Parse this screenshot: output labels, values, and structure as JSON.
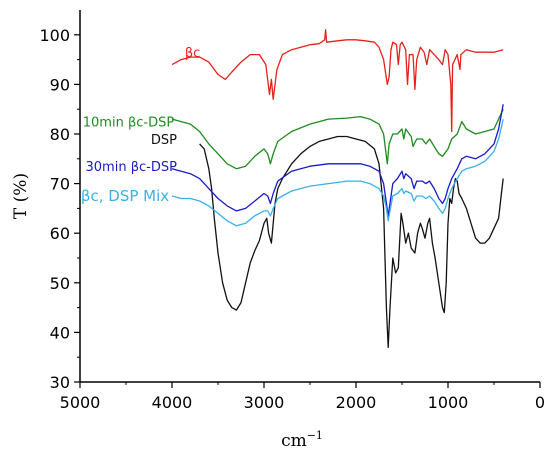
{
  "chart_data": {
    "type": "line",
    "title": "",
    "xlabel": "cm",
    "xlabel_superscript": "−1",
    "ylabel": "T  (%)",
    "xlim": [
      5000,
      0
    ],
    "ylim": [
      30,
      105
    ],
    "x_reversed": true,
    "grid": false,
    "x_ticks": [
      5000,
      4000,
      3000,
      2000,
      1000,
      0
    ],
    "y_ticks": [
      30,
      40,
      50,
      60,
      70,
      80,
      90,
      100
    ],
    "series": [
      {
        "name": "βc",
        "color": "#e8201a",
        "points": [
          [
            4000,
            94
          ],
          [
            3900,
            95
          ],
          [
            3800,
            95.5
          ],
          [
            3700,
            95.5
          ],
          [
            3600,
            94.5
          ],
          [
            3500,
            92
          ],
          [
            3420,
            91
          ],
          [
            3350,
            92.5
          ],
          [
            3250,
            94.5
          ],
          [
            3150,
            96
          ],
          [
            3050,
            96
          ],
          [
            2980,
            94
          ],
          [
            2940,
            88
          ],
          [
            2920,
            91
          ],
          [
            2900,
            87
          ],
          [
            2860,
            93
          ],
          [
            2800,
            96
          ],
          [
            2700,
            97
          ],
          [
            2600,
            97.5
          ],
          [
            2500,
            98
          ],
          [
            2400,
            98.2
          ],
          [
            2340,
            99
          ],
          [
            2330,
            101
          ],
          [
            2320,
            98.5
          ],
          [
            2200,
            98.8
          ],
          [
            2100,
            99
          ],
          [
            2000,
            99
          ],
          [
            1900,
            98.8
          ],
          [
            1800,
            98.5
          ],
          [
            1750,
            97.5
          ],
          [
            1700,
            95
          ],
          [
            1660,
            90
          ],
          [
            1640,
            91.5
          ],
          [
            1620,
            97
          ],
          [
            1600,
            98.5
          ],
          [
            1560,
            98
          ],
          [
            1540,
            94
          ],
          [
            1520,
            98
          ],
          [
            1500,
            98.5
          ],
          [
            1460,
            97
          ],
          [
            1440,
            90
          ],
          [
            1420,
            96
          ],
          [
            1380,
            96
          ],
          [
            1360,
            89
          ],
          [
            1340,
            95
          ],
          [
            1300,
            97.5
          ],
          [
            1260,
            96.5
          ],
          [
            1230,
            94
          ],
          [
            1200,
            97
          ],
          [
            1150,
            96
          ],
          [
            1100,
            95
          ],
          [
            1060,
            94
          ],
          [
            1030,
            97
          ],
          [
            1000,
            96
          ],
          [
            970,
            90
          ],
          [
            960,
            80.5
          ],
          [
            950,
            94
          ],
          [
            900,
            96
          ],
          [
            870,
            93
          ],
          [
            860,
            96
          ],
          [
            800,
            97
          ],
          [
            700,
            96.5
          ],
          [
            600,
            96.5
          ],
          [
            500,
            96.5
          ],
          [
            400,
            97
          ]
        ]
      },
      {
        "name": "10min βc-DSP",
        "color": "#1e8c1e",
        "points": [
          [
            4000,
            83
          ],
          [
            3900,
            82.5
          ],
          [
            3800,
            82
          ],
          [
            3700,
            80.5
          ],
          [
            3600,
            78
          ],
          [
            3500,
            76
          ],
          [
            3400,
            74
          ],
          [
            3300,
            73
          ],
          [
            3200,
            73.5
          ],
          [
            3100,
            75.5
          ],
          [
            3000,
            77
          ],
          [
            2960,
            76
          ],
          [
            2930,
            74
          ],
          [
            2900,
            76
          ],
          [
            2850,
            78.5
          ],
          [
            2700,
            80.5
          ],
          [
            2500,
            82
          ],
          [
            2300,
            83
          ],
          [
            2100,
            83.2
          ],
          [
            1950,
            83.5
          ],
          [
            1850,
            83
          ],
          [
            1750,
            82
          ],
          [
            1700,
            80
          ],
          [
            1660,
            74
          ],
          [
            1640,
            78
          ],
          [
            1600,
            80
          ],
          [
            1550,
            80
          ],
          [
            1500,
            81
          ],
          [
            1480,
            79
          ],
          [
            1460,
            81
          ],
          [
            1400,
            79.5
          ],
          [
            1380,
            77.5
          ],
          [
            1340,
            79
          ],
          [
            1280,
            79
          ],
          [
            1240,
            78
          ],
          [
            1200,
            79
          ],
          [
            1100,
            76
          ],
          [
            1060,
            75.5
          ],
          [
            1000,
            77
          ],
          [
            960,
            79
          ],
          [
            900,
            80
          ],
          [
            850,
            82.5
          ],
          [
            800,
            81
          ],
          [
            700,
            80
          ],
          [
            600,
            80.5
          ],
          [
            500,
            81
          ],
          [
            450,
            83
          ],
          [
            400,
            85
          ]
        ]
      },
      {
        "name": "DSP",
        "color": "#111111",
        "points": [
          [
            3700,
            78
          ],
          [
            3650,
            77
          ],
          [
            3600,
            73
          ],
          [
            3570,
            69
          ],
          [
            3540,
            63
          ],
          [
            3500,
            56
          ],
          [
            3450,
            50
          ],
          [
            3400,
            46.5
          ],
          [
            3350,
            45
          ],
          [
            3300,
            44.5
          ],
          [
            3250,
            46
          ],
          [
            3200,
            50
          ],
          [
            3150,
            54
          ],
          [
            3100,
            56.5
          ],
          [
            3050,
            58.5
          ],
          [
            3000,
            62
          ],
          [
            2970,
            63
          ],
          [
            2950,
            60
          ],
          [
            2920,
            58
          ],
          [
            2900,
            62
          ],
          [
            2880,
            66
          ],
          [
            2850,
            69
          ],
          [
            2800,
            71
          ],
          [
            2700,
            74
          ],
          [
            2600,
            76
          ],
          [
            2500,
            77.5
          ],
          [
            2400,
            78.5
          ],
          [
            2300,
            79
          ],
          [
            2200,
            79.5
          ],
          [
            2100,
            79.5
          ],
          [
            2000,
            79
          ],
          [
            1900,
            78.5
          ],
          [
            1800,
            77
          ],
          [
            1750,
            74
          ],
          [
            1700,
            65
          ],
          [
            1670,
            45
          ],
          [
            1650,
            37
          ],
          [
            1630,
            45
          ],
          [
            1600,
            55
          ],
          [
            1570,
            52
          ],
          [
            1540,
            53
          ],
          [
            1510,
            64
          ],
          [
            1490,
            62
          ],
          [
            1460,
            58
          ],
          [
            1430,
            60
          ],
          [
            1400,
            57
          ],
          [
            1360,
            56
          ],
          [
            1330,
            60
          ],
          [
            1300,
            62
          ],
          [
            1280,
            61
          ],
          [
            1250,
            59
          ],
          [
            1220,
            62
          ],
          [
            1200,
            63
          ],
          [
            1170,
            58
          ],
          [
            1140,
            55
          ],
          [
            1100,
            50
          ],
          [
            1060,
            45
          ],
          [
            1040,
            44
          ],
          [
            1020,
            50
          ],
          [
            1000,
            62
          ],
          [
            980,
            67
          ],
          [
            960,
            66
          ],
          [
            940,
            69
          ],
          [
            920,
            71
          ],
          [
            900,
            70.5
          ],
          [
            880,
            68
          ],
          [
            850,
            67
          ],
          [
            800,
            65
          ],
          [
            750,
            62
          ],
          [
            700,
            59
          ],
          [
            650,
            58
          ],
          [
            600,
            58
          ],
          [
            550,
            59
          ],
          [
            500,
            61
          ],
          [
            450,
            63
          ],
          [
            420,
            68
          ],
          [
            400,
            71
          ]
        ]
      },
      {
        "name": "30min βc-DSP",
        "color": "#1a1acc",
        "points": [
          [
            4000,
            73
          ],
          [
            3900,
            72.5
          ],
          [
            3800,
            72
          ],
          [
            3700,
            71
          ],
          [
            3600,
            69
          ],
          [
            3500,
            67
          ],
          [
            3400,
            65.5
          ],
          [
            3300,
            64.5
          ],
          [
            3200,
            65
          ],
          [
            3100,
            66.5
          ],
          [
            3000,
            68
          ],
          [
            2960,
            67.5
          ],
          [
            2930,
            66
          ],
          [
            2900,
            68
          ],
          [
            2850,
            70.5
          ],
          [
            2700,
            72.5
          ],
          [
            2500,
            73.5
          ],
          [
            2300,
            74
          ],
          [
            2100,
            74
          ],
          [
            1950,
            74
          ],
          [
            1850,
            73.5
          ],
          [
            1750,
            72.5
          ],
          [
            1700,
            70
          ],
          [
            1670,
            66
          ],
          [
            1650,
            63.5
          ],
          [
            1630,
            66
          ],
          [
            1600,
            70
          ],
          [
            1550,
            71
          ],
          [
            1500,
            72.5
          ],
          [
            1480,
            71
          ],
          [
            1460,
            72
          ],
          [
            1400,
            71
          ],
          [
            1370,
            69
          ],
          [
            1340,
            70.5
          ],
          [
            1280,
            70.5
          ],
          [
            1240,
            70
          ],
          [
            1200,
            70.5
          ],
          [
            1150,
            69
          ],
          [
            1100,
            67
          ],
          [
            1060,
            66
          ],
          [
            1030,
            67
          ],
          [
            1000,
            69
          ],
          [
            960,
            71
          ],
          [
            900,
            73
          ],
          [
            850,
            75
          ],
          [
            800,
            75.5
          ],
          [
            700,
            75
          ],
          [
            600,
            76
          ],
          [
            500,
            78
          ],
          [
            450,
            81
          ],
          [
            400,
            86
          ]
        ]
      },
      {
        "name": "βc, DSP Mix",
        "color": "#39b0ec",
        "points": [
          [
            4000,
            67.5
          ],
          [
            3900,
            67
          ],
          [
            3800,
            67
          ],
          [
            3700,
            66.5
          ],
          [
            3600,
            65.5
          ],
          [
            3500,
            64
          ],
          [
            3400,
            62.5
          ],
          [
            3300,
            61.5
          ],
          [
            3200,
            62
          ],
          [
            3100,
            63.5
          ],
          [
            3000,
            64.5
          ],
          [
            2960,
            64.5
          ],
          [
            2930,
            63.5
          ],
          [
            2900,
            65
          ],
          [
            2850,
            67
          ],
          [
            2700,
            68.5
          ],
          [
            2500,
            69.5
          ],
          [
            2300,
            70
          ],
          [
            2100,
            70.5
          ],
          [
            1950,
            70.5
          ],
          [
            1850,
            70
          ],
          [
            1750,
            69
          ],
          [
            1700,
            67.5
          ],
          [
            1670,
            65
          ],
          [
            1650,
            62.5
          ],
          [
            1630,
            64.5
          ],
          [
            1600,
            67.5
          ],
          [
            1550,
            68
          ],
          [
            1500,
            69
          ],
          [
            1480,
            68
          ],
          [
            1460,
            68.5
          ],
          [
            1400,
            68
          ],
          [
            1370,
            66.5
          ],
          [
            1340,
            67.5
          ],
          [
            1280,
            67.5
          ],
          [
            1240,
            67
          ],
          [
            1200,
            67.5
          ],
          [
            1150,
            66.5
          ],
          [
            1100,
            65
          ],
          [
            1060,
            64
          ],
          [
            1030,
            65
          ],
          [
            1000,
            67
          ],
          [
            960,
            69
          ],
          [
            900,
            71
          ],
          [
            850,
            72.5
          ],
          [
            800,
            73
          ],
          [
            700,
            73.5
          ],
          [
            600,
            74.5
          ],
          [
            500,
            76.5
          ],
          [
            450,
            79
          ],
          [
            400,
            83
          ]
        ]
      }
    ],
    "labels": [
      {
        "text": "βc",
        "color": "#e8201a",
        "x": 3860,
        "y": 95.5
      },
      {
        "text": "10min βc-DSP",
        "color": "#1e8c1e",
        "x": 4970,
        "y": 81.5
      },
      {
        "text": "DSP",
        "color": "#111111",
        "x": 4230,
        "y": 78
      },
      {
        "text": "30min βc-DSP",
        "color": "#1a1acc",
        "x": 4940,
        "y": 72.5
      },
      {
        "text": "βc, DSP Mix",
        "color": "#39b0ec",
        "x": 4990,
        "y": 66.5
      }
    ]
  }
}
